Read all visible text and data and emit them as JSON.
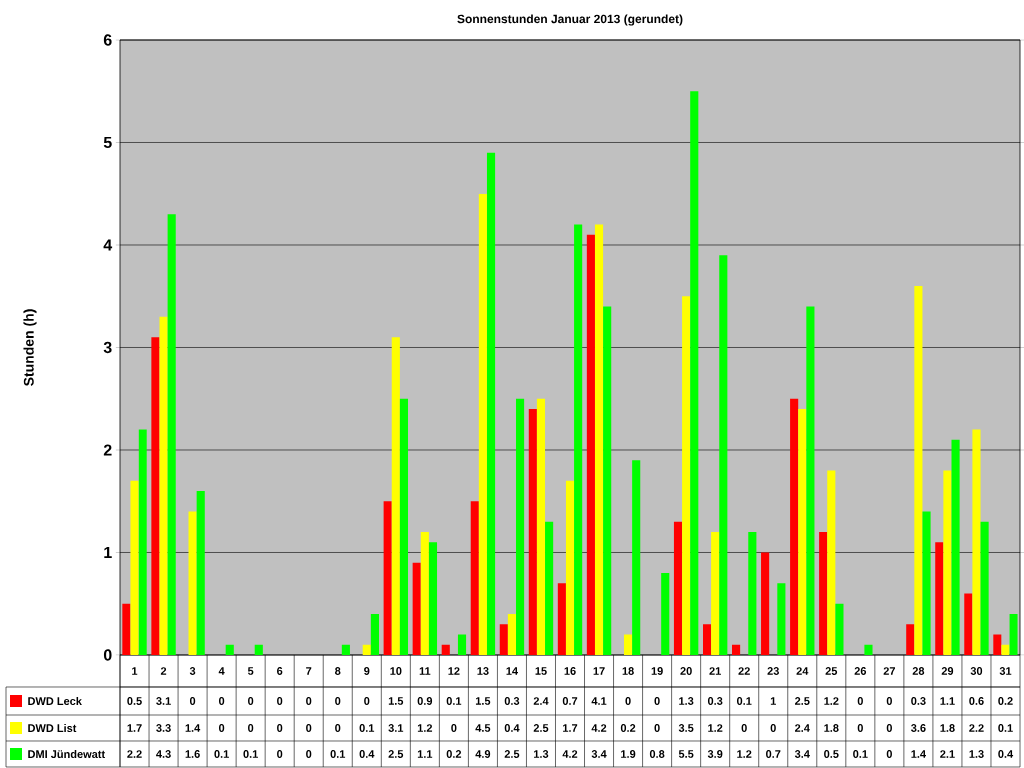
{
  "chart_data": {
    "type": "bar",
    "title": "Sonnenstunden Januar 2013 (gerundet)",
    "ylabel": "Stunden (h)",
    "categories": [
      "1",
      "2",
      "3",
      "4",
      "5",
      "6",
      "7",
      "8",
      "9",
      "10",
      "11",
      "12",
      "13",
      "14",
      "15",
      "16",
      "17",
      "18",
      "19",
      "20",
      "21",
      "22",
      "23",
      "24",
      "25",
      "26",
      "27",
      "28",
      "29",
      "30",
      "31"
    ],
    "series": [
      {
        "name": "DWD Leck",
        "color": "#ff0000",
        "values": [
          0.5,
          3.1,
          0,
          0,
          0,
          0,
          0,
          0,
          0,
          1.5,
          0.9,
          0.1,
          1.5,
          0.3,
          2.4,
          0.7,
          4.1,
          0,
          0,
          1.3,
          0.3,
          0.1,
          1,
          2.5,
          1.2,
          0,
          0,
          0.3,
          1.1,
          0.6,
          0.2
        ]
      },
      {
        "name": "DWD List",
        "color": "#ffff00",
        "values": [
          1.7,
          3.3,
          1.4,
          0,
          0,
          0,
          0,
          0,
          0.1,
          3.1,
          1.2,
          0,
          4.5,
          0.4,
          2.5,
          1.7,
          4.2,
          0.2,
          0,
          3.5,
          1.2,
          0,
          0,
          2.4,
          1.8,
          0,
          0,
          3.6,
          1.8,
          2.2,
          0.1
        ]
      },
      {
        "name": "DMI Jündewatt",
        "color": "#00ff00",
        "values": [
          2.2,
          4.3,
          1.6,
          0.1,
          0.1,
          0,
          0,
          0.1,
          0.4,
          2.5,
          1.1,
          0.2,
          4.9,
          2.5,
          1.3,
          4.2,
          3.4,
          1.9,
          0.8,
          5.5,
          3.9,
          1.2,
          0.7,
          3.4,
          0.5,
          0.1,
          0,
          1.4,
          2.1,
          1.3,
          0.4
        ]
      }
    ],
    "ylim": [
      0,
      6
    ],
    "yticks": [
      0,
      1,
      2,
      3,
      4,
      5,
      6
    ],
    "grid": true,
    "legend": "bottom left",
    "data_labels": true
  }
}
